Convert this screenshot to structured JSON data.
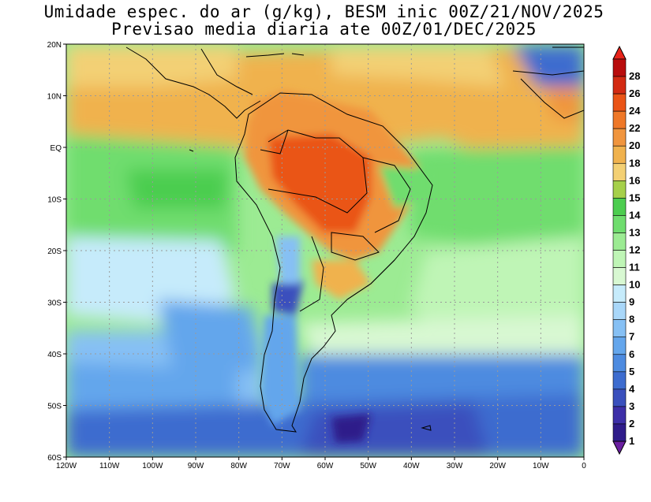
{
  "title_line1": "Umidade espec. do ar (g/kg), BESM inic 00Z/21/NOV/2025",
  "title_line2": "Previsao media diaria ate 00Z/01/DEC/2025",
  "lat_labels": [
    "20N",
    "10N",
    "EQ",
    "10S",
    "20S",
    "30S",
    "40S",
    "50S",
    "60S"
  ],
  "lon_labels": [
    "120W",
    "110W",
    "100W",
    "90W",
    "80W",
    "70W",
    "60W",
    "50W",
    "40W",
    "30W",
    "20W",
    "10W",
    "0"
  ],
  "colorbar": {
    "labels": [
      "1",
      "2",
      "3",
      "4",
      "5",
      "6",
      "7",
      "8",
      "9",
      "10",
      "11",
      "12",
      "13",
      "14",
      "15",
      "16",
      "18",
      "20",
      "22",
      "24",
      "26",
      "28"
    ],
    "colors": [
      "#2f1c8a",
      "#3d2fa8",
      "#3a50bd",
      "#3d6ccf",
      "#4d8be0",
      "#64a6ec",
      "#86c0f4",
      "#a9d7f9",
      "#c6ebfb",
      "#d8f8d2",
      "#bff5b6",
      "#9ceb93",
      "#6fdd6e",
      "#4ccd4f",
      "#a6d04a",
      "#f3d074",
      "#f0b24e",
      "#f0953e",
      "#ef7828",
      "#ea5416",
      "#d32a12",
      "#b80c0c"
    ]
  },
  "legend_colors": {
    "map_background_ocean_south": "#3d6ccf",
    "land_interior": "#ef7828",
    "coast_lines": "#000000"
  }
}
